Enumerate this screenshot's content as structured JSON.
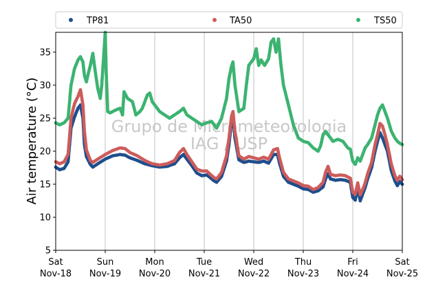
{
  "chart_data": {
    "type": "scatter",
    "ylabel": "Air temperature (°C)",
    "watermark": [
      "Grupo de Micrometeorologia",
      "IAG / USP"
    ],
    "ylim": [
      5,
      38
    ],
    "xlim": [
      0,
      7
    ],
    "yticks": [
      5,
      10,
      15,
      20,
      25,
      30,
      35
    ],
    "xticks": [
      {
        "x": 0,
        "day": "Sat",
        "date": "Nov-18"
      },
      {
        "x": 1,
        "day": "Sun",
        "date": "Nov-19"
      },
      {
        "x": 2,
        "day": "Mon",
        "date": "Nov-20"
      },
      {
        "x": 3,
        "day": "Tue",
        "date": "Nov-21"
      },
      {
        "x": 4,
        "day": "Wed",
        "date": "Nov-22"
      },
      {
        "x": 5,
        "day": "Thu",
        "date": "Nov-23"
      },
      {
        "x": 6,
        "day": "Fri",
        "date": "Nov-24"
      },
      {
        "x": 7,
        "day": "Sat",
        "date": "Nov-25"
      }
    ],
    "grid": "vertical",
    "legend_position": "top",
    "colors": {
      "TP81": "#1f4e8c",
      "TA50": "#cd5c5c",
      "TS50": "#3cb371"
    },
    "series": [
      {
        "name": "TP81",
        "color": "#1f4e8c",
        "points": [
          [
            0.0,
            17.6
          ],
          [
            0.08,
            17.2
          ],
          [
            0.17,
            17.4
          ],
          [
            0.25,
            18.4
          ],
          [
            0.31,
            23.5
          ],
          [
            0.38,
            25.2
          ],
          [
            0.45,
            26.5
          ],
          [
            0.5,
            27.0
          ],
          [
            0.55,
            25.0
          ],
          [
            0.58,
            21.0
          ],
          [
            0.62,
            19.2
          ],
          [
            0.7,
            18.0
          ],
          [
            0.75,
            17.6
          ],
          [
            0.85,
            18.1
          ],
          [
            1.0,
            18.8
          ],
          [
            1.15,
            19.3
          ],
          [
            1.3,
            19.5
          ],
          [
            1.4,
            19.4
          ],
          [
            1.5,
            19.0
          ],
          [
            1.65,
            18.6
          ],
          [
            1.8,
            18.1
          ],
          [
            1.95,
            17.8
          ],
          [
            2.1,
            17.6
          ],
          [
            2.25,
            17.7
          ],
          [
            2.4,
            18.1
          ],
          [
            2.5,
            19.0
          ],
          [
            2.58,
            19.5
          ],
          [
            2.65,
            18.8
          ],
          [
            2.75,
            17.8
          ],
          [
            2.85,
            16.7
          ],
          [
            2.95,
            16.3
          ],
          [
            3.05,
            16.4
          ],
          [
            3.12,
            16.0
          ],
          [
            3.2,
            15.5
          ],
          [
            3.25,
            15.3
          ],
          [
            3.35,
            16.2
          ],
          [
            3.45,
            18.5
          ],
          [
            3.5,
            21.0
          ],
          [
            3.55,
            24.5
          ],
          [
            3.58,
            25.3
          ],
          [
            3.62,
            22.0
          ],
          [
            3.7,
            18.7
          ],
          [
            3.8,
            18.3
          ],
          [
            3.9,
            18.5
          ],
          [
            4.0,
            18.4
          ],
          [
            4.1,
            18.3
          ],
          [
            4.2,
            18.5
          ],
          [
            4.3,
            18.2
          ],
          [
            4.4,
            19.5
          ],
          [
            4.48,
            19.5
          ],
          [
            4.52,
            18.2
          ],
          [
            4.6,
            16.2
          ],
          [
            4.7,
            15.3
          ],
          [
            4.8,
            15.0
          ],
          [
            4.9,
            14.7
          ],
          [
            5.0,
            14.3
          ],
          [
            5.1,
            14.2
          ],
          [
            5.2,
            13.8
          ],
          [
            5.3,
            14.0
          ],
          [
            5.4,
            14.6
          ],
          [
            5.45,
            15.8
          ],
          [
            5.5,
            16.6
          ],
          [
            5.55,
            15.8
          ],
          [
            5.65,
            15.6
          ],
          [
            5.75,
            15.7
          ],
          [
            5.85,
            15.6
          ],
          [
            5.95,
            15.3
          ],
          [
            6.0,
            13.0
          ],
          [
            6.05,
            12.6
          ],
          [
            6.1,
            14.5
          ],
          [
            6.15,
            12.5
          ],
          [
            6.2,
            13.5
          ],
          [
            6.25,
            14.5
          ],
          [
            6.3,
            15.8
          ],
          [
            6.38,
            17.5
          ],
          [
            6.45,
            20.0
          ],
          [
            6.5,
            21.5
          ],
          [
            6.55,
            22.8
          ],
          [
            6.6,
            22.0
          ],
          [
            6.65,
            21.0
          ],
          [
            6.7,
            20.0
          ],
          [
            6.78,
            17.0
          ],
          [
            6.85,
            15.5
          ],
          [
            6.9,
            14.8
          ],
          [
            6.95,
            15.4
          ],
          [
            7.0,
            15.0
          ]
        ]
      },
      {
        "name": "TA50",
        "color": "#cd5c5c",
        "points": [
          [
            0.0,
            18.4
          ],
          [
            0.08,
            18.1
          ],
          [
            0.17,
            18.4
          ],
          [
            0.25,
            19.5
          ],
          [
            0.31,
            25.0
          ],
          [
            0.38,
            27.2
          ],
          [
            0.45,
            28.3
          ],
          [
            0.5,
            29.3
          ],
          [
            0.55,
            27.0
          ],
          [
            0.58,
            23.0
          ],
          [
            0.62,
            20.2
          ],
          [
            0.7,
            18.6
          ],
          [
            0.75,
            18.3
          ],
          [
            0.85,
            18.8
          ],
          [
            1.0,
            19.5
          ],
          [
            1.15,
            20.1
          ],
          [
            1.3,
            20.5
          ],
          [
            1.4,
            20.4
          ],
          [
            1.5,
            19.8
          ],
          [
            1.65,
            19.3
          ],
          [
            1.8,
            18.6
          ],
          [
            1.95,
            18.1
          ],
          [
            2.1,
            17.9
          ],
          [
            2.25,
            18.1
          ],
          [
            2.4,
            18.6
          ],
          [
            2.5,
            19.8
          ],
          [
            2.58,
            20.4
          ],
          [
            2.65,
            19.5
          ],
          [
            2.75,
            18.4
          ],
          [
            2.85,
            17.3
          ],
          [
            2.95,
            17.0
          ],
          [
            3.05,
            17.0
          ],
          [
            3.12,
            16.5
          ],
          [
            3.2,
            16.0
          ],
          [
            3.25,
            15.8
          ],
          [
            3.35,
            16.8
          ],
          [
            3.45,
            19.3
          ],
          [
            3.5,
            22.0
          ],
          [
            3.55,
            25.2
          ],
          [
            3.58,
            26.0
          ],
          [
            3.62,
            23.0
          ],
          [
            3.7,
            19.3
          ],
          [
            3.8,
            18.8
          ],
          [
            3.9,
            19.2
          ],
          [
            4.0,
            19.0
          ],
          [
            4.1,
            18.8
          ],
          [
            4.2,
            19.1
          ],
          [
            4.3,
            18.8
          ],
          [
            4.4,
            20.2
          ],
          [
            4.48,
            20.4
          ],
          [
            4.52,
            19.0
          ],
          [
            4.6,
            16.8
          ],
          [
            4.7,
            15.8
          ],
          [
            4.8,
            15.5
          ],
          [
            4.9,
            15.2
          ],
          [
            5.0,
            14.8
          ],
          [
            5.1,
            14.7
          ],
          [
            5.2,
            14.2
          ],
          [
            5.3,
            14.5
          ],
          [
            5.4,
            15.3
          ],
          [
            5.45,
            16.8
          ],
          [
            5.5,
            17.7
          ],
          [
            5.55,
            16.5
          ],
          [
            5.65,
            16.3
          ],
          [
            5.75,
            16.4
          ],
          [
            5.85,
            16.3
          ],
          [
            5.95,
            15.9
          ],
          [
            6.0,
            13.8
          ],
          [
            6.05,
            13.5
          ],
          [
            6.1,
            15.2
          ],
          [
            6.15,
            13.4
          ],
          [
            6.2,
            14.2
          ],
          [
            6.25,
            15.2
          ],
          [
            6.3,
            16.6
          ],
          [
            6.38,
            18.3
          ],
          [
            6.45,
            21.0
          ],
          [
            6.5,
            22.5
          ],
          [
            6.55,
            24.2
          ],
          [
            6.6,
            23.8
          ],
          [
            6.65,
            22.5
          ],
          [
            6.7,
            21.0
          ],
          [
            6.78,
            18.0
          ],
          [
            6.85,
            16.3
          ],
          [
            6.9,
            15.6
          ],
          [
            6.95,
            16.2
          ],
          [
            7.0,
            15.7
          ]
        ]
      },
      {
        "name": "TS50",
        "color": "#3cb371",
        "points": [
          [
            0.0,
            24.3
          ],
          [
            0.08,
            24.0
          ],
          [
            0.17,
            24.3
          ],
          [
            0.25,
            25.0
          ],
          [
            0.31,
            30.0
          ],
          [
            0.38,
            32.5
          ],
          [
            0.45,
            33.8
          ],
          [
            0.5,
            34.3
          ],
          [
            0.55,
            33.5
          ],
          [
            0.58,
            31.5
          ],
          [
            0.62,
            30.5
          ],
          [
            0.65,
            31.5
          ],
          [
            0.7,
            33.0
          ],
          [
            0.75,
            34.8
          ],
          [
            0.8,
            32.0
          ],
          [
            0.85,
            29.5
          ],
          [
            0.9,
            28.0
          ],
          [
            0.93,
            30.0
          ],
          [
            0.97,
            34.5
          ],
          [
            1.0,
            38.0
          ],
          [
            1.02,
            32.0
          ],
          [
            1.05,
            26.0
          ],
          [
            1.1,
            25.8
          ],
          [
            1.2,
            26.2
          ],
          [
            1.3,
            26.5
          ],
          [
            1.35,
            25.5
          ],
          [
            1.38,
            29.0
          ],
          [
            1.45,
            28.0
          ],
          [
            1.55,
            27.5
          ],
          [
            1.62,
            25.5
          ],
          [
            1.7,
            26.0
          ],
          [
            1.75,
            26.5
          ],
          [
            1.8,
            27.5
          ],
          [
            1.85,
            28.5
          ],
          [
            1.9,
            28.8
          ],
          [
            1.95,
            27.5
          ],
          [
            2.0,
            27.0
          ],
          [
            2.1,
            26.0
          ],
          [
            2.2,
            25.5
          ],
          [
            2.3,
            25.0
          ],
          [
            2.4,
            25.5
          ],
          [
            2.5,
            26.0
          ],
          [
            2.58,
            26.5
          ],
          [
            2.65,
            25.5
          ],
          [
            2.75,
            25.0
          ],
          [
            2.85,
            24.5
          ],
          [
            2.95,
            24.0
          ],
          [
            3.05,
            24.3
          ],
          [
            3.15,
            24.5
          ],
          [
            3.25,
            23.5
          ],
          [
            3.35,
            25.0
          ],
          [
            3.45,
            28.0
          ],
          [
            3.5,
            31.0
          ],
          [
            3.55,
            32.8
          ],
          [
            3.58,
            33.5
          ],
          [
            3.62,
            30.0
          ],
          [
            3.7,
            26.0
          ],
          [
            3.8,
            26.5
          ],
          [
            3.85,
            30.0
          ],
          [
            3.9,
            33.0
          ],
          [
            4.0,
            34.0
          ],
          [
            4.05,
            35.5
          ],
          [
            4.1,
            33.0
          ],
          [
            4.15,
            33.8
          ],
          [
            4.22,
            33.0
          ],
          [
            4.3,
            34.0
          ],
          [
            4.35,
            36.5
          ],
          [
            4.4,
            37.0
          ],
          [
            4.45,
            35.0
          ],
          [
            4.5,
            37.0
          ],
          [
            4.55,
            33.0
          ],
          [
            4.6,
            30.0
          ],
          [
            4.65,
            28.5
          ],
          [
            4.7,
            27.0
          ],
          [
            4.75,
            25.5
          ],
          [
            4.8,
            24.0
          ],
          [
            4.85,
            23.0
          ],
          [
            4.9,
            22.0
          ],
          [
            5.0,
            21.5
          ],
          [
            5.1,
            21.3
          ],
          [
            5.2,
            20.5
          ],
          [
            5.3,
            20.0
          ],
          [
            5.35,
            20.8
          ],
          [
            5.4,
            22.5
          ],
          [
            5.45,
            23.0
          ],
          [
            5.5,
            22.5
          ],
          [
            5.55,
            22.0
          ],
          [
            5.6,
            21.5
          ],
          [
            5.7,
            21.8
          ],
          [
            5.8,
            21.5
          ],
          [
            5.9,
            20.5
          ],
          [
            5.95,
            20.3
          ],
          [
            6.0,
            18.5
          ],
          [
            6.05,
            18.0
          ],
          [
            6.1,
            19.0
          ],
          [
            6.15,
            18.5
          ],
          [
            6.2,
            19.5
          ],
          [
            6.25,
            20.5
          ],
          [
            6.3,
            21.0
          ],
          [
            6.38,
            22.0
          ],
          [
            6.45,
            24.0
          ],
          [
            6.5,
            25.5
          ],
          [
            6.55,
            26.5
          ],
          [
            6.6,
            27.0
          ],
          [
            6.65,
            26.0
          ],
          [
            6.7,
            25.0
          ],
          [
            6.78,
            23.0
          ],
          [
            6.85,
            22.0
          ],
          [
            6.9,
            21.5
          ],
          [
            6.95,
            21.2
          ],
          [
            7.0,
            21.0
          ]
        ]
      }
    ]
  }
}
